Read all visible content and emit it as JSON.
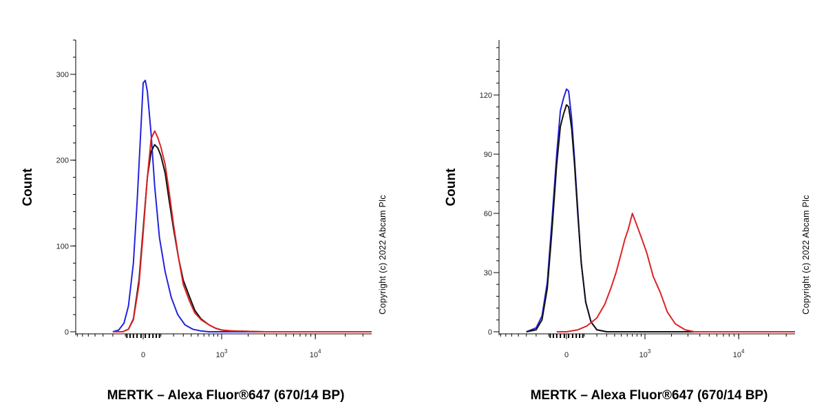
{
  "chart_data": [
    {
      "type": "line",
      "title": "",
      "xlabel": "MERTK – Alexa Fluor®647 (670/14 BP)",
      "ylabel": "Count",
      "copyright": "Copyright (c) 2022 Abcam Plc",
      "x_scale": "biexponential",
      "x_ticks": [
        {
          "value": 0,
          "label": "0",
          "exp": ""
        },
        {
          "value": 1000,
          "label": "10",
          "exp": "3"
        },
        {
          "value": 10000,
          "label": "10",
          "exp": "4"
        }
      ],
      "ylim": [
        0,
        340
      ],
      "y_ticks": [
        0,
        100,
        200,
        300
      ],
      "grid": false,
      "series": [
        {
          "color": "#2222dd",
          "x": [
            -200,
            -150,
            -110,
            -80,
            -50,
            -30,
            -10,
            0,
            10,
            20,
            40,
            60,
            90,
            130,
            180,
            240,
            320,
            420,
            550,
            700,
            900,
            1200,
            3000,
            40000
          ],
          "y": [
            0,
            2,
            10,
            30,
            80,
            150,
            240,
            290,
            293,
            280,
            230,
            170,
            110,
            70,
            40,
            20,
            8,
            3,
            1,
            0,
            0,
            0,
            0,
            0
          ]
        },
        {
          "color": "#111111",
          "x": [
            -200,
            -120,
            -80,
            -50,
            -20,
            0,
            20,
            40,
            60,
            80,
            100,
            130,
            160,
            200,
            250,
            300,
            380,
            450,
            550,
            700,
            850,
            1000,
            1300,
            3000,
            40000
          ],
          "y": [
            0,
            0,
            3,
            15,
            60,
            120,
            180,
            210,
            218,
            214,
            205,
            185,
            155,
            120,
            85,
            60,
            40,
            25,
            15,
            8,
            4,
            2,
            1,
            0,
            0
          ]
        },
        {
          "color": "#dd2222",
          "x": [
            -200,
            -120,
            -80,
            -50,
            -20,
            0,
            20,
            40,
            60,
            80,
            100,
            130,
            160,
            200,
            250,
            300,
            380,
            450,
            550,
            700,
            850,
            1000,
            1300,
            3000,
            40000
          ],
          "y": [
            0,
            0,
            3,
            14,
            55,
            115,
            180,
            225,
            234,
            226,
            215,
            195,
            165,
            125,
            85,
            55,
            35,
            22,
            14,
            8,
            4,
            2,
            1,
            0,
            0
          ]
        }
      ]
    },
    {
      "type": "line",
      "title": "",
      "xlabel": "MERTK – Alexa Fluor®647 (670/14 BP)",
      "ylabel": "Count",
      "copyright": "Copyright (c) 2022 Abcam Plc",
      "x_scale": "biexponential",
      "x_ticks": [
        {
          "value": 0,
          "label": "0",
          "exp": ""
        },
        {
          "value": 1000,
          "label": "10",
          "exp": "3"
        },
        {
          "value": 10000,
          "label": "10",
          "exp": "4"
        }
      ],
      "ylim": [
        0,
        140
      ],
      "y_ticks": [
        0,
        30,
        60,
        90,
        120
      ],
      "grid": false,
      "series": [
        {
          "color": "#2222dd",
          "x": [
            -300,
            -200,
            -150,
            -110,
            -80,
            -50,
            -30,
            -15,
            0,
            10,
            25,
            40,
            60,
            80,
            110,
            150,
            200,
            300,
            500,
            1000,
            40000
          ],
          "y": [
            0,
            2,
            8,
            25,
            55,
            90,
            112,
            118,
            123,
            122,
            108,
            88,
            60,
            35,
            15,
            5,
            1,
            0,
            0,
            0,
            0
          ]
        },
        {
          "color": "#111111",
          "x": [
            -300,
            -200,
            -150,
            -110,
            -80,
            -50,
            -30,
            -15,
            0,
            10,
            25,
            40,
            60,
            80,
            110,
            150,
            200,
            300,
            500,
            1000,
            40000
          ],
          "y": [
            0,
            1,
            6,
            22,
            50,
            85,
            104,
            110,
            115,
            114,
            103,
            85,
            58,
            35,
            15,
            5,
            1,
            0,
            0,
            0,
            0
          ]
        },
        {
          "color": "#dd2222",
          "x": [
            -50,
            0,
            60,
            120,
            200,
            280,
            350,
            420,
            500,
            560,
            620,
            700,
            780,
            900,
            1050,
            1250,
            1500,
            1800,
            2200,
            2800,
            3500,
            40000
          ],
          "y": [
            0,
            0,
            1,
            3,
            7,
            14,
            22,
            30,
            40,
            47,
            52,
            60,
            55,
            48,
            40,
            28,
            20,
            10,
            4,
            1,
            0,
            0
          ]
        }
      ]
    }
  ]
}
